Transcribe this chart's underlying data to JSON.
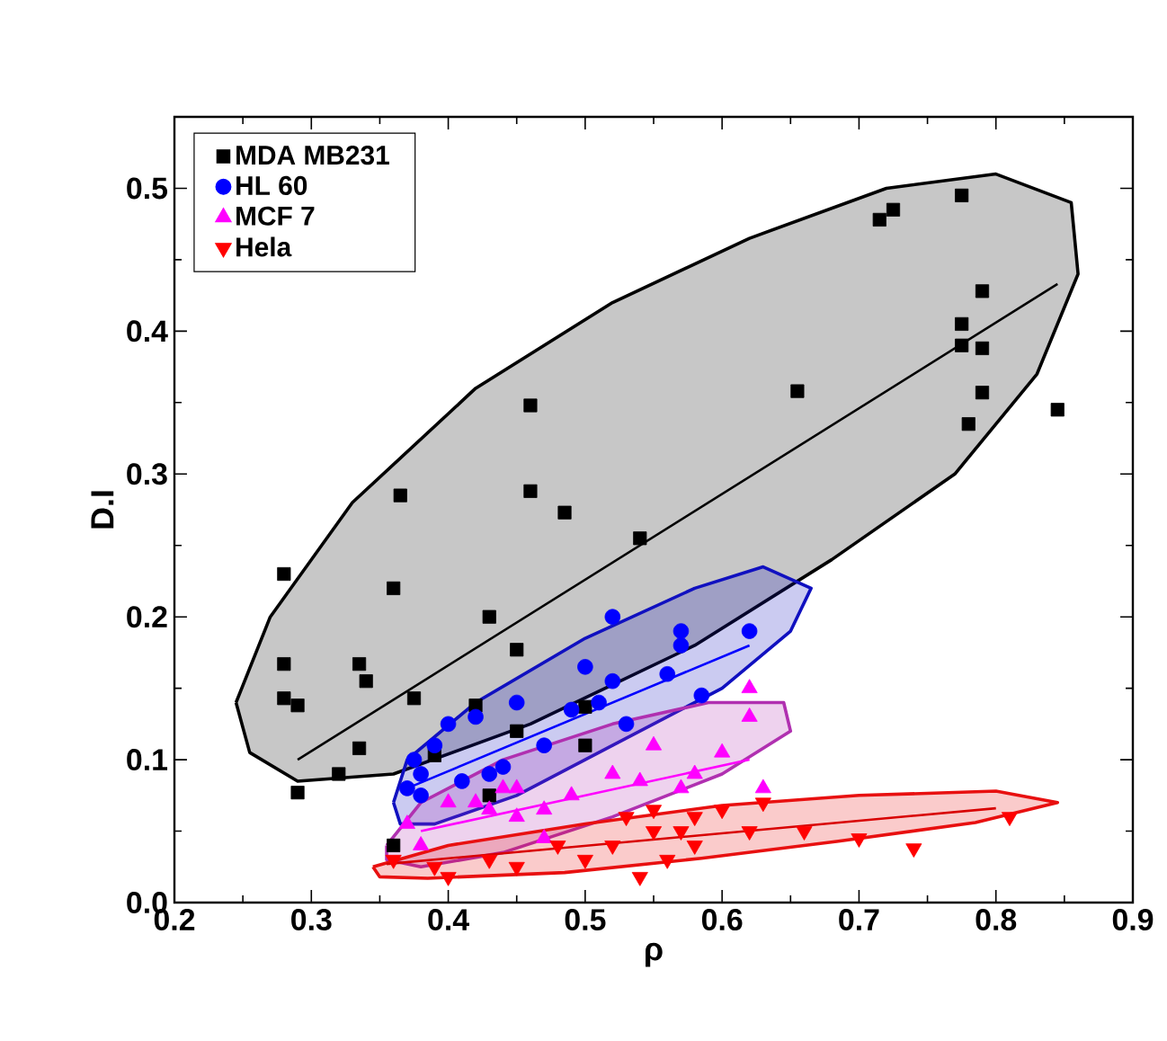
{
  "chart_data": {
    "type": "scatter",
    "xlabel": "ρ",
    "ylabel": "D.I",
    "xlim": [
      0.2,
      0.9
    ],
    "ylim": [
      0,
      0.55
    ],
    "xticks": [
      {
        "value": 0.2,
        "label": "0.2"
      },
      {
        "value": 0.3,
        "label": "0.3"
      },
      {
        "value": 0.4,
        "label": "0.4"
      },
      {
        "value": 0.5,
        "label": "0.5"
      },
      {
        "value": 0.6,
        "label": "0.6"
      },
      {
        "value": 0.7,
        "label": "0.7"
      },
      {
        "value": 0.8,
        "label": "0.8"
      },
      {
        "value": 0.9,
        "label": "0.9"
      }
    ],
    "yticks": [
      {
        "value": 0,
        "label": "0.0"
      },
      {
        "value": 0.1,
        "label": "0.1"
      },
      {
        "value": 0.2,
        "label": "0.2"
      },
      {
        "value": 0.3,
        "label": "0.3"
      },
      {
        "value": 0.4,
        "label": "0.4"
      },
      {
        "value": 0.5,
        "label": "0.5"
      }
    ],
    "grid": false,
    "legend": "top left",
    "series": [
      {
        "type": "area",
        "color": "#000000",
        "x": [
          0.245,
          0.27,
          0.33,
          0.42,
          0.52,
          0.62,
          0.72,
          0.8,
          0.855,
          0.86,
          0.83,
          0.77,
          0.68,
          0.58,
          0.46,
          0.36,
          0.29,
          0.255,
          0.245
        ],
        "values": [
          0.14,
          0.2,
          0.28,
          0.36,
          0.42,
          0.465,
          0.5,
          0.51,
          0.49,
          0.44,
          0.37,
          0.3,
          0.24,
          0.18,
          0.125,
          0.09,
          0.085,
          0.105,
          0.14
        ]
      },
      {
        "type": "area",
        "color": "#1010c0",
        "x": [
          0.36,
          0.37,
          0.42,
          0.5,
          0.58,
          0.63,
          0.665,
          0.65,
          0.6,
          0.52,
          0.45,
          0.39,
          0.365,
          0.36
        ],
        "values": [
          0.07,
          0.1,
          0.14,
          0.185,
          0.22,
          0.235,
          0.22,
          0.19,
          0.15,
          0.11,
          0.075,
          0.055,
          0.055,
          0.07
        ]
      },
      {
        "type": "area",
        "color": "#b030b0",
        "x": [
          0.355,
          0.38,
          0.44,
          0.52,
          0.59,
          0.645,
          0.65,
          0.6,
          0.52,
          0.44,
          0.38,
          0.355,
          0.355
        ],
        "values": [
          0.04,
          0.07,
          0.1,
          0.125,
          0.14,
          0.14,
          0.12,
          0.09,
          0.06,
          0.035,
          0.025,
          0.03,
          0.04
        ]
      },
      {
        "type": "area",
        "color": "#e81010",
        "x": [
          0.345,
          0.4,
          0.5,
          0.6,
          0.7,
          0.8,
          0.845,
          0.785,
          0.685,
          0.585,
          0.485,
          0.385,
          0.35,
          0.345
        ],
        "values": [
          0.025,
          0.04,
          0.055,
          0.068,
          0.075,
          0.078,
          0.07,
          0.056,
          0.043,
          0.031,
          0.021,
          0.017,
          0.018,
          0.025
        ]
      },
      {
        "type": "line",
        "color": "#000000",
        "x": [
          0.29,
          0.845
        ],
        "values": [
          0.1,
          0.433
        ]
      },
      {
        "type": "line",
        "color": "#0000ff",
        "x": [
          0.37,
          0.62
        ],
        "values": [
          0.08,
          0.18
        ]
      },
      {
        "type": "line",
        "color": "#ff00ff",
        "x": [
          0.38,
          0.62
        ],
        "values": [
          0.05,
          0.1
        ]
      },
      {
        "type": "line",
        "color": "#d80000",
        "x": [
          0.355,
          0.8
        ],
        "values": [
          0.027,
          0.066
        ]
      },
      {
        "name": "MDA MB231",
        "marker": "square",
        "color": "#000000",
        "x": [
          0.28,
          0.28,
          0.28,
          0.29,
          0.29,
          0.32,
          0.335,
          0.34,
          0.335,
          0.36,
          0.365,
          0.375,
          0.39,
          0.42,
          0.43,
          0.45,
          0.46,
          0.46,
          0.485,
          0.54,
          0.5,
          0.5,
          0.655,
          0.715,
          0.725,
          0.775,
          0.79,
          0.775,
          0.775,
          0.79,
          0.79,
          0.78,
          0.845,
          0.36,
          0.43,
          0.45
        ],
        "values": [
          0.23,
          0.167,
          0.143,
          0.138,
          0.077,
          0.09,
          0.167,
          0.155,
          0.108,
          0.22,
          0.285,
          0.143,
          0.103,
          0.138,
          0.2,
          0.177,
          0.348,
          0.288,
          0.273,
          0.255,
          0.137,
          0.11,
          0.358,
          0.478,
          0.485,
          0.495,
          0.428,
          0.405,
          0.39,
          0.388,
          0.357,
          0.335,
          0.345,
          0.04,
          0.075,
          0.12
        ]
      },
      {
        "name": "HL 60",
        "marker": "circle",
        "color": "#0000ff",
        "x": [
          0.37,
          0.38,
          0.375,
          0.38,
          0.39,
          0.4,
          0.41,
          0.42,
          0.43,
          0.44,
          0.45,
          0.47,
          0.49,
          0.51,
          0.52,
          0.52,
          0.53,
          0.56,
          0.57,
          0.57,
          0.585,
          0.62,
          0.5
        ],
        "values": [
          0.08,
          0.09,
          0.1,
          0.075,
          0.11,
          0.125,
          0.085,
          0.13,
          0.09,
          0.095,
          0.14,
          0.11,
          0.135,
          0.14,
          0.2,
          0.155,
          0.125,
          0.16,
          0.19,
          0.18,
          0.145,
          0.19,
          0.165
        ]
      },
      {
        "name": "MCF 7",
        "marker": "triangle",
        "color": "#ff00ff",
        "x": [
          0.37,
          0.38,
          0.4,
          0.42,
          0.43,
          0.44,
          0.45,
          0.47,
          0.49,
          0.52,
          0.54,
          0.55,
          0.57,
          0.58,
          0.6,
          0.62,
          0.62,
          0.63,
          0.47,
          0.45
        ],
        "values": [
          0.055,
          0.04,
          0.07,
          0.07,
          0.065,
          0.08,
          0.08,
          0.065,
          0.075,
          0.09,
          0.085,
          0.11,
          0.08,
          0.09,
          0.105,
          0.15,
          0.13,
          0.08,
          0.045,
          0.06
        ]
      },
      {
        "name": "Hela",
        "marker": "triangle-down",
        "color": "#ff0000",
        "x": [
          0.36,
          0.39,
          0.4,
          0.43,
          0.45,
          0.48,
          0.5,
          0.52,
          0.53,
          0.55,
          0.57,
          0.58,
          0.58,
          0.6,
          0.62,
          0.63,
          0.66,
          0.7,
          0.74,
          0.81,
          0.54,
          0.55,
          0.56
        ],
        "values": [
          0.03,
          0.025,
          0.018,
          0.03,
          0.025,
          0.04,
          0.03,
          0.04,
          0.06,
          0.05,
          0.05,
          0.04,
          0.06,
          0.065,
          0.05,
          0.07,
          0.05,
          0.045,
          0.038,
          0.06,
          0.018,
          0.065,
          0.03
        ]
      }
    ]
  }
}
